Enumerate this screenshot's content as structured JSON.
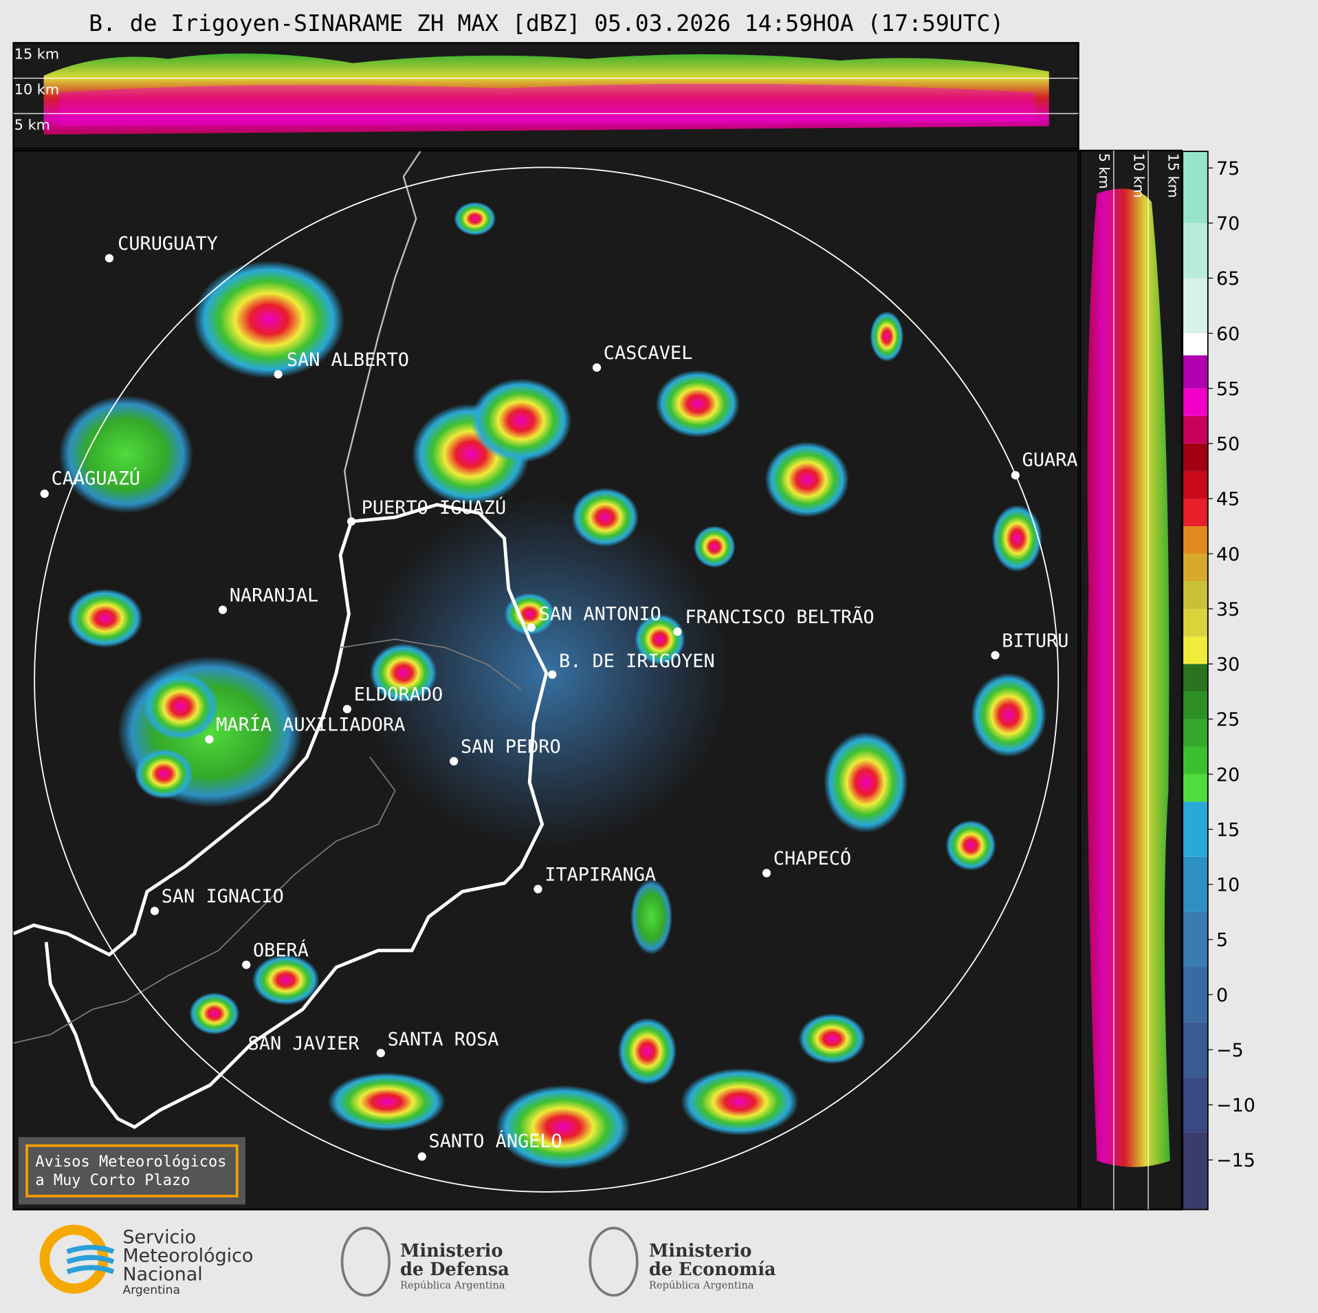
{
  "title": "B. de Irigoyen-SINARAME ZH MAX [dBZ] 05.03.2026 14:59HOA (17:59UTC)",
  "top_profile": {
    "height_labels": [
      "15 km",
      "10 km",
      "5 km"
    ]
  },
  "side_profile": {
    "height_labels": [
      "5 km",
      "10 km",
      "15 km"
    ]
  },
  "cities": [
    "CURUGUATY",
    "SAN ALBERTO",
    "CASCAVEL",
    "CAAGUAZÚ",
    "GUARA",
    "PUERTO IGUAZÚ",
    "NARANJAL",
    "SAN ANTONIO",
    "FRANCISCO BELTRÃO",
    "BITURU",
    "B. DE IRIGOYEN",
    "ELDORADO",
    "MARÍA AUXILIADORA",
    "SAN PEDRO",
    "CHAPECÓ",
    "ITAPIRANGA",
    "SAN IGNACIO",
    "OBERÁ",
    "SAN JAVIER",
    "SANTA ROSA",
    "SANTO ÁNGELO"
  ],
  "colorbar": {
    "lim": [
      -19.5,
      76.5
    ],
    "ticks": [
      75,
      70,
      65,
      60,
      55,
      50,
      45,
      40,
      35,
      30,
      25,
      20,
      15,
      10,
      5,
      0,
      {
        "value": -5,
        "label": "−5"
      },
      {
        "value": -10,
        "label": "−10"
      },
      {
        "value": -15,
        "label": "−15"
      }
    ],
    "bands": [
      {
        "from": -19.5,
        "color": "#3a3c6b"
      },
      {
        "from": -12.5,
        "color": "#3b4a82"
      },
      {
        "from": -7.5,
        "color": "#3a5a92"
      },
      {
        "from": -2.5,
        "color": "#3a6aa2"
      },
      {
        "from": 2.5,
        "color": "#3a7bb2"
      },
      {
        "from": 7.5,
        "color": "#2e8fc2"
      },
      {
        "from": 12.5,
        "color": "#2aa8d8"
      },
      {
        "from": 17.5,
        "color": "#4fdc3c"
      },
      {
        "from": 20,
        "color": "#3dc030"
      },
      {
        "from": 22.5,
        "color": "#34a82a"
      },
      {
        "from": 25,
        "color": "#2e8f26"
      },
      {
        "from": 27.5,
        "color": "#2a7420"
      },
      {
        "from": 30,
        "color": "#f0ec3a"
      },
      {
        "from": 32.5,
        "color": "#d8d43a"
      },
      {
        "from": 35,
        "color": "#c8c036"
      },
      {
        "from": 37.5,
        "color": "#d8a82a"
      },
      {
        "from": 40,
        "color": "#e08a1e"
      },
      {
        "from": 42.5,
        "color": "#e81e2a"
      },
      {
        "from": 45,
        "color": "#c80a1a"
      },
      {
        "from": 47.5,
        "color": "#a00010"
      },
      {
        "from": 50,
        "color": "#c8005a"
      },
      {
        "from": 52.5,
        "color": "#f000c8"
      },
      {
        "from": 55,
        "color": "#b000b0"
      },
      {
        "from": 58,
        "color": "#ffffff"
      },
      {
        "from": 60,
        "color": "#d8f2e8"
      },
      {
        "from": 65,
        "color": "#b8ecd8"
      },
      {
        "from": 70,
        "color": "#98e4c8"
      }
    ]
  },
  "warning": {
    "lines": [
      "Avisos Meteorológicos",
      "a Muy Corto Plazo"
    ]
  },
  "logos": {
    "smn": [
      "Servicio",
      "Meteorológico",
      "Nacional",
      "Argentina"
    ],
    "defensa": [
      "Ministerio",
      "de Defensa",
      "República Argentina"
    ],
    "economia": [
      "Ministerio",
      "de Economía",
      "República Argentina"
    ]
  }
}
